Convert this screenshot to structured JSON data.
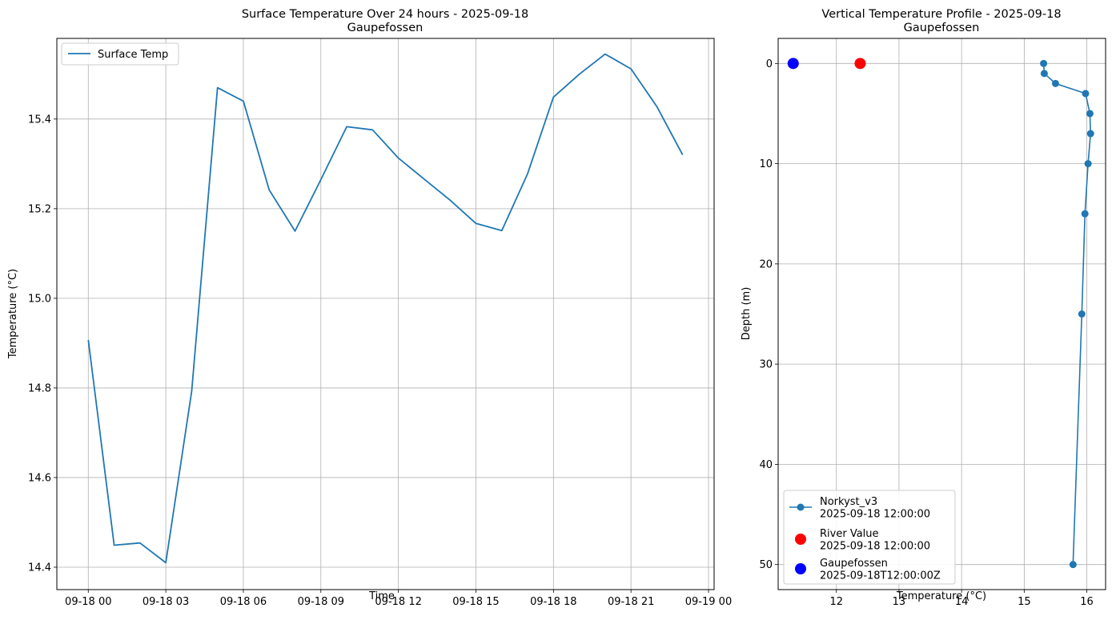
{
  "chart_data": [
    {
      "type": "line",
      "title": "Surface Temperature Over 24 hours - 2025-09-18",
      "subtitle": "Gaupefossen",
      "xlabel": "Time",
      "ylabel": "Temperature (°C)",
      "xlim": [
        "2025-09-17T22:47",
        "2025-09-19T00:13"
      ],
      "ylim": [
        14.35,
        15.58
      ],
      "x_tick_values": [
        "2025-09-18T00:00",
        "2025-09-18T03:00",
        "2025-09-18T06:00",
        "2025-09-18T09:00",
        "2025-09-18T12:00",
        "2025-09-18T15:00",
        "2025-09-18T18:00",
        "2025-09-18T21:00",
        "2025-09-19T00:00"
      ],
      "x_tick_labels": [
        "09-18 00",
        "09-18 03",
        "09-18 06",
        "09-18 09",
        "09-18 12",
        "09-18 15",
        "09-18 18",
        "09-18 21",
        "09-19 00"
      ],
      "y_ticks": [
        14.4,
        14.6,
        14.8,
        15.0,
        15.2,
        15.4
      ],
      "y_tick_labels": [
        "14.4",
        "14.6",
        "14.8",
        "15.0",
        "15.2",
        "15.4"
      ],
      "grid": true,
      "legend_position": "upper-left",
      "series": [
        {
          "name": "Surface Temp",
          "color": "#1f77b4",
          "x": [
            "2025-09-18T00:00",
            "2025-09-18T01:00",
            "2025-09-18T02:00",
            "2025-09-18T03:00",
            "2025-09-18T04:00",
            "2025-09-18T05:00",
            "2025-09-18T06:00",
            "2025-09-18T07:00",
            "2025-09-18T08:00",
            "2025-09-18T09:00",
            "2025-09-18T10:00",
            "2025-09-18T11:00",
            "2025-09-18T12:00",
            "2025-09-18T13:00",
            "2025-09-18T14:00",
            "2025-09-18T15:00",
            "2025-09-18T16:00",
            "2025-09-18T17:00",
            "2025-09-18T18:00",
            "2025-09-18T19:00",
            "2025-09-18T20:00",
            "2025-09-18T21:00",
            "2025-09-18T22:00",
            "2025-09-18T23:00"
          ],
          "y": [
            14.907,
            14.449,
            14.454,
            14.41,
            14.792,
            15.47,
            15.44,
            15.242,
            15.15,
            15.265,
            15.383,
            15.376,
            15.313,
            15.266,
            15.219,
            15.167,
            15.151,
            15.278,
            15.449,
            15.5,
            15.545,
            15.512,
            15.428,
            15.32
          ]
        }
      ]
    },
    {
      "type": "line",
      "title": "Vertical Temperature Profile - 2025-09-18",
      "subtitle": "Gaupefossen",
      "xlabel": "Temperature (°C)",
      "ylabel": "Depth (m)",
      "xlim": [
        11.07,
        16.3
      ],
      "ylim": [
        52.5,
        -2.5
      ],
      "y_inverted": true,
      "x_ticks": [
        12,
        13,
        14,
        15,
        16
      ],
      "x_tick_labels": [
        "12",
        "13",
        "14",
        "15",
        "16"
      ],
      "y_ticks": [
        0,
        10,
        20,
        30,
        40,
        50
      ],
      "y_tick_labels": [
        "0",
        "10",
        "20",
        "30",
        "40",
        "50"
      ],
      "grid": true,
      "legend_position": "lower-left",
      "series": [
        {
          "name": "Norkyst_v3\n2025-09-18 12:00:00",
          "color": "#1f77b4",
          "marker": "circle-line",
          "x": [
            15.31,
            15.32,
            15.5,
            15.98,
            16.05,
            16.06,
            16.02,
            15.97,
            15.92,
            15.78
          ],
          "y": [
            0,
            1,
            2,
            3,
            5,
            7,
            10,
            15,
            25,
            50
          ]
        },
        {
          "name": "River Value\n2025-09-18 12:00:00",
          "color": "#ff0000",
          "marker": "big-dot",
          "x": [
            12.38
          ],
          "y": [
            0
          ]
        },
        {
          "name": "Gaupefossen\n2025-09-18T12:00:00Z",
          "color": "#0000ff",
          "marker": "big-dot",
          "x": [
            11.31
          ],
          "y": [
            0
          ]
        }
      ]
    }
  ]
}
